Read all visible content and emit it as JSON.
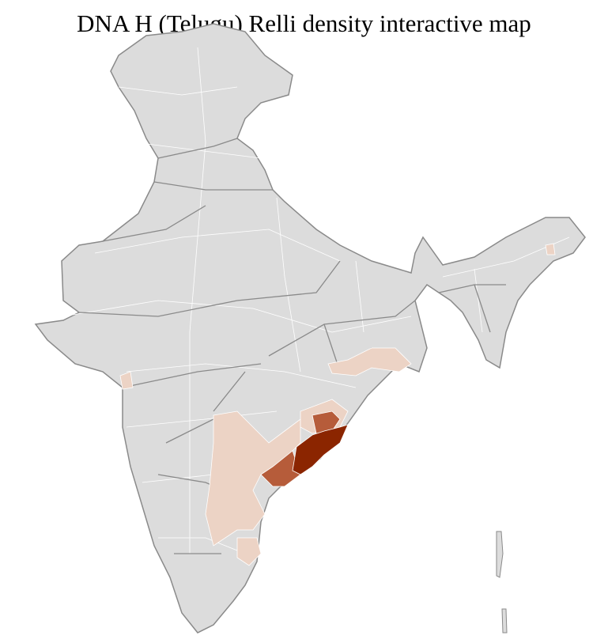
{
  "title": "DNA H (Telugu) Relli density interactive map",
  "map": {
    "region": "India districts",
    "colors": {
      "no_data": "#dcdcdc",
      "border": "#8a8a8a",
      "district_border": "#ffffff",
      "low": "#ecd3c5",
      "medium": "#b65c3a",
      "high": "#8b2500"
    }
  }
}
